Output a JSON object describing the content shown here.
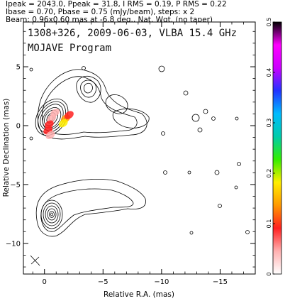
{
  "header": {
    "line1": "Ipeak = 2043.0, Ppeak = 31.8, I RMS = 0.19, P RMS = 0.22",
    "line2": "Ibase = 0.70, Pbase = 0.75 (mJy/beam), steps: x 2",
    "line3": "Beam: 0.96x0.60 mas at -6.8 deg., Nat. Wgt. (no taper)"
  },
  "inset": {
    "line1": "1308+326, 2009-06-03, VLBA 15.4 GHz",
    "line2": "MOJAVE Program"
  },
  "chart_data": {
    "type": "heatmap",
    "xlabel": "Relative R.A. (mas)",
    "ylabel": "Relative Declination (mas)",
    "xlim": [
      1.8,
      -18.0
    ],
    "ylim": [
      -12.6,
      8.8
    ],
    "x_ticks": [
      0,
      -5,
      -10,
      -15
    ],
    "x_tick_labels": [
      "0",
      "−5",
      "−10",
      "−15"
    ],
    "y_ticks": [
      5,
      0,
      -5,
      -10
    ],
    "y_tick_labels": [
      "5",
      "0",
      "−5",
      "−10"
    ],
    "colorbar": {
      "min": 0,
      "max": 0.5,
      "ticks": [
        0,
        0.1,
        0.2,
        0.3,
        0.4,
        0.5
      ],
      "tick_labels": [
        "0",
        "0.1",
        "0.2",
        "0.3",
        "0.4",
        "0.5"
      ],
      "colors": [
        "#ffffff",
        "#ffb0b0",
        "#ff2020",
        "#ff9900",
        "#ffee00",
        "#33ee00",
        "#00ccaa",
        "#00bbff",
        "#2233ff",
        "#cc00ff",
        "#ff00ff",
        "#000000"
      ]
    },
    "sources": [
      {
        "label": "core",
        "x": 0.0,
        "y": 0.0
      },
      {
        "label": "beam",
        "x": 0.0,
        "y": -7.9
      }
    ],
    "polarization_patches": [
      {
        "x": -0.9,
        "y": 1.1,
        "value": 0.03
      },
      {
        "x": -0.6,
        "y": 0.6,
        "value": 0.05
      },
      {
        "x": -0.4,
        "y": 0.1,
        "value": 0.07
      },
      {
        "x": -0.3,
        "y": -0.4,
        "value": 0.08
      },
      {
        "x": -0.5,
        "y": -0.8,
        "value": 0.06
      },
      {
        "x": -1.8,
        "y": 0.6,
        "value": 0.14
      },
      {
        "x": -1.6,
        "y": 0.2,
        "value": 0.18
      },
      {
        "x": -2.1,
        "y": 0.9,
        "value": 0.1
      }
    ]
  }
}
